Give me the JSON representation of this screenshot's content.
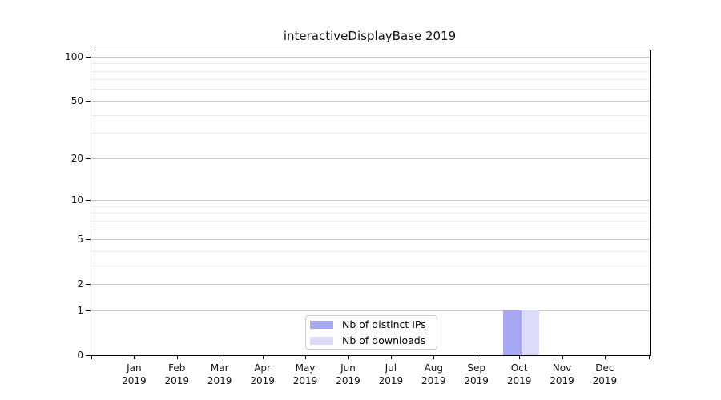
{
  "chart_data": {
    "type": "bar",
    "title": "interactiveDisplayBase 2019",
    "x": {
      "months": [
        "Jan",
        "Feb",
        "Mar",
        "Apr",
        "May",
        "Jun",
        "Jul",
        "Aug",
        "Sep",
        "Oct",
        "Nov",
        "Dec"
      ],
      "year": "2019"
    },
    "categories": [
      "Jan 2019",
      "Feb 2019",
      "Mar 2019",
      "Apr 2019",
      "May 2019",
      "Jun 2019",
      "Jul 2019",
      "Aug 2019",
      "Sep 2019",
      "Oct 2019",
      "Nov 2019",
      "Dec 2019"
    ],
    "series": [
      {
        "name": "Nb of distinct IPs",
        "color": "#a8a8f2",
        "values": [
          0,
          0,
          0,
          0,
          0,
          0,
          0,
          0,
          0,
          1,
          0,
          0
        ]
      },
      {
        "name": "Nb of downloads",
        "color": "#dcdcf8",
        "values": [
          0,
          0,
          0,
          0,
          0,
          0,
          0,
          0,
          0,
          1,
          0,
          0
        ]
      }
    ],
    "yscale": "log1p",
    "ylim": [
      0,
      110
    ],
    "y_tick_values": [
      0,
      1,
      2,
      5,
      10,
      20,
      50,
      100
    ],
    "y_minor_gridlines": [
      3,
      4,
      6,
      7,
      8,
      9,
      30,
      40,
      60,
      70,
      80,
      90
    ],
    "grid": "both",
    "legend_position": "lower center",
    "colors": {
      "major_grid": "#c9c9c9",
      "minor_grid": "#ededed",
      "axis": "#000000",
      "background": "#ffffff"
    }
  }
}
